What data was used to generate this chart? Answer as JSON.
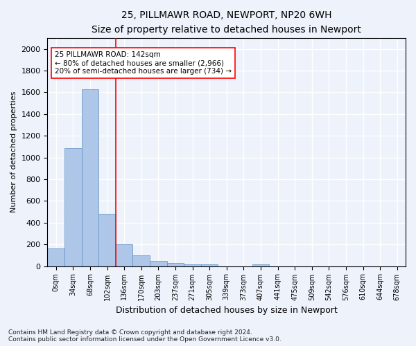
{
  "title_line1": "25, PILLMAWR ROAD, NEWPORT, NP20 6WH",
  "title_line2": "Size of property relative to detached houses in Newport",
  "xlabel": "Distribution of detached houses by size in Newport",
  "ylabel": "Number of detached properties",
  "footnote": "Contains HM Land Registry data © Crown copyright and database right 2024.\nContains public sector information licensed under the Open Government Licence v3.0.",
  "bar_labels": [
    "0sqm",
    "34sqm",
    "68sqm",
    "102sqm",
    "136sqm",
    "170sqm",
    "203sqm",
    "237sqm",
    "271sqm",
    "305sqm",
    "339sqm",
    "373sqm",
    "407sqm",
    "441sqm",
    "475sqm",
    "509sqm",
    "542sqm",
    "576sqm",
    "610sqm",
    "644sqm",
    "678sqm"
  ],
  "bar_values": [
    165,
    1085,
    1625,
    480,
    200,
    100,
    47,
    30,
    18,
    18,
    0,
    0,
    18,
    0,
    0,
    0,
    0,
    0,
    0,
    0,
    0
  ],
  "bar_color": "#aec6e8",
  "bar_edge_color": "#5a8fc4",
  "vline_x": 4.0,
  "vline_color": "red",
  "annotation_box_text": "25 PILLMAWR ROAD: 142sqm\n← 80% of detached houses are smaller (2,966)\n20% of semi-detached houses are larger (734) →",
  "ylim": [
    0,
    2100
  ],
  "yticks": [
    0,
    200,
    400,
    600,
    800,
    1000,
    1200,
    1400,
    1600,
    1800,
    2000
  ],
  "background_color": "#eef2fb",
  "axes_background": "#eef2fb",
  "grid_color": "#ffffff",
  "title1_fontsize": 10,
  "title2_fontsize": 9,
  "annotation_fontsize": 7.5,
  "xlabel_fontsize": 9,
  "ylabel_fontsize": 8,
  "tick_fontsize": 7,
  "ytick_fontsize": 8,
  "footnote_fontsize": 6.5
}
